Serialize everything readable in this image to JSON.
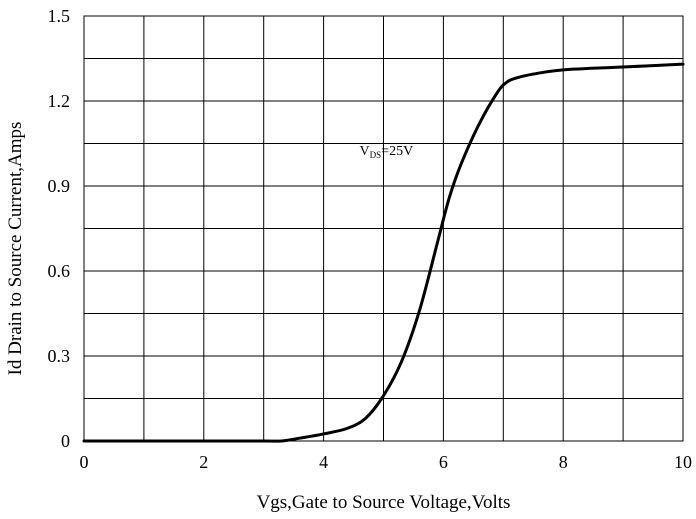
{
  "chart_data": {
    "type": "line",
    "title": "",
    "xlabel": "Vgs,Gate to Source Voltage,Volts",
    "ylabel": "Id Drain to Source Current,Amps",
    "xlim": [
      0,
      10
    ],
    "ylim": [
      0,
      1.5
    ],
    "x_ticks": [
      "0",
      "2",
      "4",
      "6",
      "8",
      "10"
    ],
    "x_tick_values": [
      0,
      2,
      4,
      6,
      8,
      10
    ],
    "y_ticks": [
      "0",
      "0.3",
      "0.6",
      "0.9",
      "1.2",
      "1.5"
    ],
    "y_tick_values": [
      0,
      0.3,
      0.6,
      0.9,
      1.2,
      1.5
    ],
    "grid": true,
    "grid_x_step": 1,
    "grid_y_step": 0.15,
    "annotation": {
      "main": "V",
      "sub": "DS",
      "rest": "=25V",
      "x": 4.6,
      "y": 1.01
    },
    "series": [
      {
        "color": "#000000",
        "x": [
          0,
          1,
          2,
          3,
          3.3,
          3.6,
          4.0,
          4.4,
          4.7,
          5.0,
          5.3,
          5.6,
          5.9,
          6.1,
          6.3,
          6.6,
          6.9,
          7.05,
          7.2,
          7.5,
          8.0,
          9.0,
          10.0
        ],
        "y": [
          0,
          0,
          0,
          0,
          0.0,
          0.01,
          0.025,
          0.045,
          0.08,
          0.16,
          0.28,
          0.46,
          0.7,
          0.86,
          0.98,
          1.12,
          1.23,
          1.265,
          1.28,
          1.295,
          1.31,
          1.32,
          1.33
        ]
      }
    ]
  }
}
